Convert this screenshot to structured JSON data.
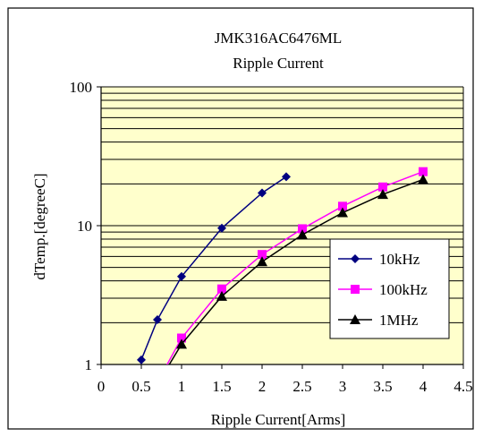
{
  "chart_data": {
    "type": "line",
    "title": "JMK316AC6476ML",
    "subtitle": "Ripple Current",
    "xlabel": "Ripple Current[Arms]",
    "ylabel": "dTemp.[degreeC]",
    "xlim": [
      0,
      4.5
    ],
    "ylim": [
      1,
      100
    ],
    "yscale": "log",
    "x_ticks": [
      "0",
      "0.5",
      "1",
      "1.5",
      "2",
      "2.5",
      "3",
      "3.5",
      "4",
      "4.5"
    ],
    "y_ticks": [
      "1",
      "10",
      "100"
    ],
    "grid": true,
    "plot_background": "#ffffcc",
    "legend_position": "right",
    "series": [
      {
        "name": "10kHz",
        "color": "#000080",
        "marker": "diamond",
        "x": [
          0.5,
          0.7,
          1.0,
          1.5,
          2.0,
          2.3
        ],
        "y": [
          1.08,
          2.1,
          4.3,
          9.6,
          17.2,
          22.5
        ]
      },
      {
        "name": "100kHz",
        "color": "#ff00ff",
        "marker": "square",
        "x": [
          0.8,
          1.0,
          1.5,
          2.0,
          2.5,
          3.0,
          3.5,
          4.0
        ],
        "y": [
          0.95,
          1.55,
          3.5,
          6.2,
          9.5,
          13.8,
          19.0,
          24.5
        ]
      },
      {
        "name": "1MHz",
        "color": "#000000",
        "marker": "triangle",
        "x": [
          0.8,
          1.0,
          1.5,
          2.0,
          2.5,
          3.0,
          3.5,
          4.0
        ],
        "y": [
          0.9,
          1.4,
          3.1,
          5.5,
          8.6,
          12.4,
          16.8,
          21.5
        ]
      }
    ]
  }
}
